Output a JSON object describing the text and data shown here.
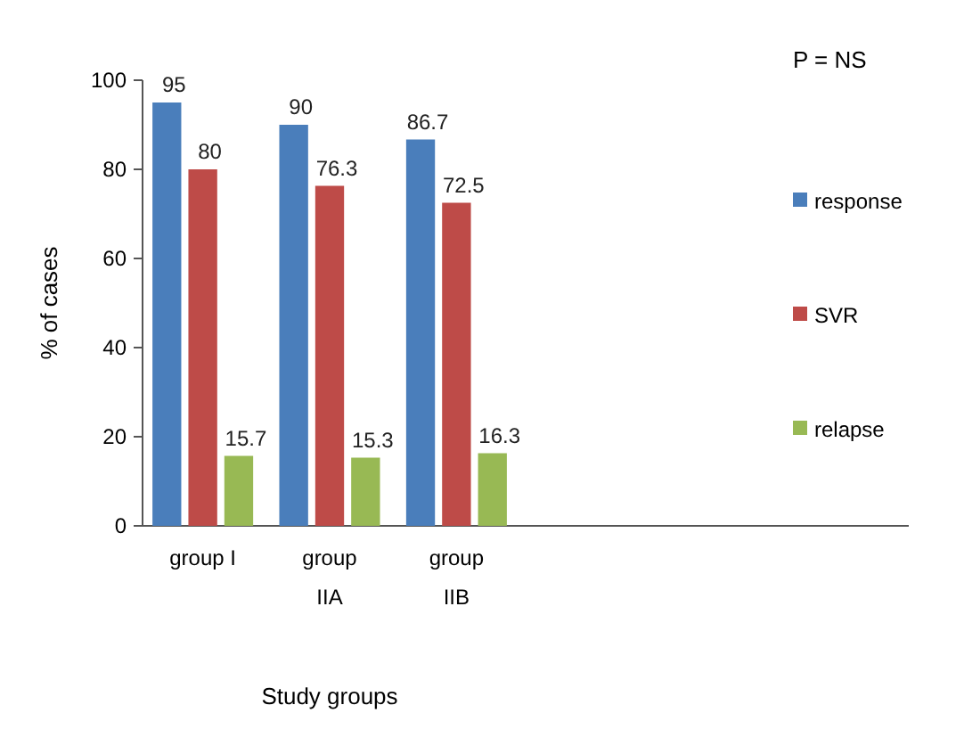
{
  "chart_data": {
    "type": "bar",
    "categories": [
      "group I",
      "group IIA",
      "group IIB"
    ],
    "series": [
      {
        "name": "response",
        "color": "#4a7ebb",
        "values": [
          95,
          90,
          86.7
        ]
      },
      {
        "name": "SVR",
        "color": "#be4b48",
        "values": [
          80,
          76.3,
          72.5
        ]
      },
      {
        "name": "relapse",
        "color": "#98b954",
        "values": [
          15.7,
          15.3,
          16.3
        ]
      }
    ],
    "ylim": [
      0,
      100
    ],
    "yticks": [
      0,
      20,
      40,
      60,
      80,
      100
    ],
    "ylabel": "% of cases",
    "xlabel": "Study groups",
    "data_labels": true,
    "legend": "right",
    "grid": false,
    "annotations": [
      "P = NS"
    ]
  }
}
